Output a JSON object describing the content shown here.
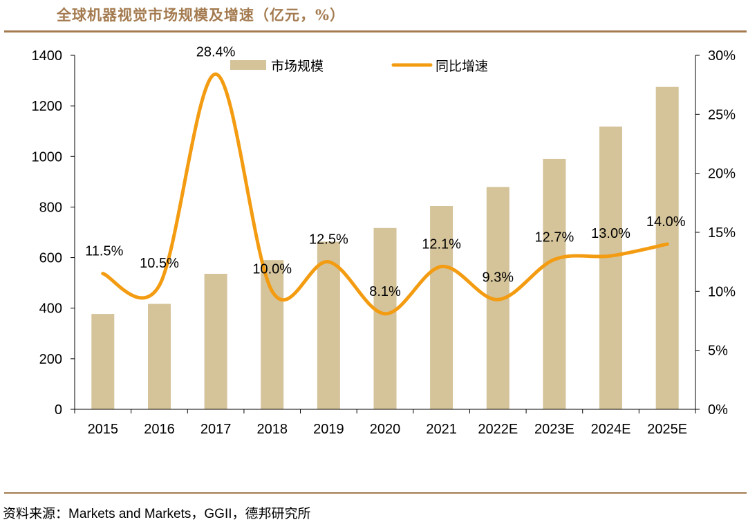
{
  "title": "全球机器视觉市场规模及增速（亿元，%）",
  "source": "资料来源：Markets and Markets，GGII，德邦研究所",
  "colors": {
    "title": "#a47b50",
    "bar": "#d5c39a",
    "line": "#f39c12",
    "rule": "#a47b50",
    "axis": "#000000"
  },
  "chart_data": {
    "type": "bar+line",
    "categories": [
      "2015",
      "2016",
      "2017",
      "2018",
      "2019",
      "2020",
      "2021",
      "2022E",
      "2023E",
      "2024E",
      "2025E"
    ],
    "series": [
      {
        "name": "市场规模",
        "type": "bar",
        "axis": "left",
        "values": [
          377,
          417,
          536,
          590,
          663,
          717,
          804,
          879,
          990,
          1118,
          1275
        ]
      },
      {
        "name": "同比增速",
        "type": "line",
        "axis": "right",
        "values": [
          11.5,
          10.5,
          28.4,
          10.0,
          12.5,
          8.1,
          12.1,
          9.3,
          12.7,
          13.0,
          14.0
        ],
        "labels": [
          "11.5%",
          "10.5%",
          "28.4%",
          "10.0%",
          "12.5%",
          "8.1%",
          "12.1%",
          "9.3%",
          "12.7%",
          "13.0%",
          "14.0%"
        ]
      }
    ],
    "y_left": {
      "range": [
        0,
        1400
      ],
      "ticks": [
        0,
        200,
        400,
        600,
        800,
        1000,
        1200,
        1400
      ],
      "tick_labels": [
        "0",
        "200",
        "400",
        "600",
        "800",
        "1000",
        "1200",
        "1400"
      ]
    },
    "y_right": {
      "range": [
        0,
        30
      ],
      "ticks": [
        0,
        5,
        10,
        15,
        20,
        25,
        30
      ],
      "tick_labels": [
        "0%",
        "5%",
        "10%",
        "15%",
        "20%",
        "25%",
        "30%"
      ]
    },
    "legend": {
      "placement": "top-center",
      "items": [
        "市场规模",
        "同比增速"
      ]
    },
    "grid": false
  }
}
